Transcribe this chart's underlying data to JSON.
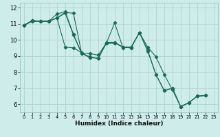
{
  "xlabel": "Humidex (Indice chaleur)",
  "bg_color": "#ceecea",
  "grid_color": "#add4d1",
  "line_color": "#1a6b5a",
  "xlim": [
    -0.5,
    23.5
  ],
  "ylim": [
    5.5,
    12.3
  ],
  "xticks": [
    0,
    1,
    2,
    3,
    4,
    5,
    6,
    7,
    8,
    9,
    10,
    11,
    12,
    13,
    14,
    15,
    16,
    17,
    18,
    19,
    20,
    21,
    22,
    23
  ],
  "yticks": [
    6,
    7,
    8,
    9,
    10,
    11,
    12
  ],
  "series": [
    [
      10.9,
      11.2,
      11.15,
      11.15,
      11.35,
      11.7,
      11.65,
      9.15,
      8.95,
      8.85,
      9.85,
      9.85,
      9.55,
      9.55,
      10.45,
      9.55,
      8.95,
      7.85,
      6.9,
      5.85,
      6.1,
      6.5,
      6.55,
      null
    ],
    [
      10.9,
      11.2,
      11.15,
      11.15,
      11.6,
      11.75,
      10.35,
      9.15,
      9.15,
      9.05,
      9.8,
      11.05,
      9.5,
      9.55,
      10.45,
      9.3,
      7.85,
      6.85,
      7.0,
      5.85,
      6.1,
      6.5,
      6.55,
      null
    ],
    [
      10.9,
      11.15,
      11.15,
      11.15,
      11.35,
      9.55,
      9.5,
      9.2,
      8.9,
      8.85,
      9.8,
      9.8,
      9.55,
      9.5,
      null,
      null,
      null,
      null,
      null,
      null,
      null,
      null,
      null,
      null
    ],
    [
      10.9,
      11.15,
      11.15,
      11.15,
      11.35,
      11.65,
      10.3,
      9.15,
      8.9,
      8.85,
      9.8,
      9.8,
      9.55,
      9.5,
      10.45,
      9.35,
      7.85,
      6.85,
      7.0,
      5.85,
      6.1,
      6.5,
      6.55,
      null
    ]
  ],
  "marker": "D",
  "markersize": 2.2,
  "linewidth": 0.8,
  "tick_fontsize_x": 4.8,
  "tick_fontsize_y": 6.0,
  "xlabel_fontsize": 6.5
}
